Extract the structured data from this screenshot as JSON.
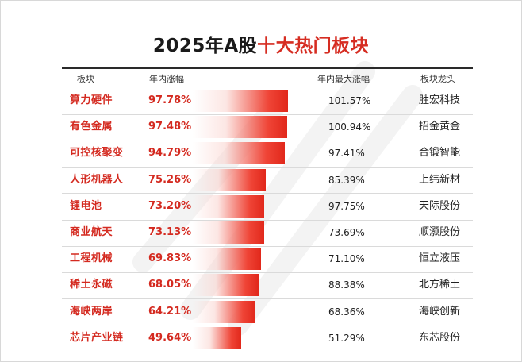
{
  "title_part1": "2025年A股",
  "title_part2": "十大热门板块",
  "headers": {
    "sector": "板块",
    "gain": "年内涨幅",
    "max_gain": "年内最大涨幅",
    "leader": "板块龙头"
  },
  "rows": [
    {
      "sector": "算力硬件",
      "gain": "97.78%",
      "max_gain": "101.57%",
      "leader": "胜宏科技"
    },
    {
      "sector": "有色金属",
      "gain": "97.48%",
      "max_gain": "100.94%",
      "leader": "招金黄金"
    },
    {
      "sector": "可控核聚变",
      "gain": "94.79%",
      "max_gain": "97.41%",
      "leader": "合锻智能"
    },
    {
      "sector": "人形机器人",
      "gain": "75.26%",
      "max_gain": "85.39%",
      "leader": "上纬新材"
    },
    {
      "sector": "锂电池",
      "gain": "73.20%",
      "max_gain": "97.75%",
      "leader": "天际股份"
    },
    {
      "sector": "商业航天",
      "gain": "73.13%",
      "max_gain": "73.69%",
      "leader": "顺灏股份"
    },
    {
      "sector": "工程机械",
      "gain": "69.83%",
      "max_gain": "71.10%",
      "leader": "恒立液压"
    },
    {
      "sector": "稀土永磁",
      "gain": "68.05%",
      "max_gain": "88.38%",
      "leader": "北方稀土"
    },
    {
      "sector": "海峡两岸",
      "gain": "64.21%",
      "max_gain": "68.36%",
      "leader": "海峡创新"
    },
    {
      "sector": "芯片产业链",
      "gain": "49.64%",
      "max_gain": "51.29%",
      "leader": "东芯股份"
    }
  ],
  "chart_data": {
    "type": "bar",
    "title": "2025年A股十大热门板块",
    "categories": [
      "算力硬件",
      "有色金属",
      "可控核聚变",
      "人形机器人",
      "锂电池",
      "商业航天",
      "工程机械",
      "稀土永磁",
      "海峡两岸",
      "芯片产业链"
    ],
    "series": [
      {
        "name": "年内涨幅",
        "values": [
          97.78,
          97.48,
          94.79,
          75.26,
          73.2,
          73.13,
          69.83,
          68.05,
          64.21,
          49.64
        ]
      },
      {
        "name": "年内最大涨幅",
        "values": [
          101.57,
          100.94,
          97.41,
          85.39,
          97.75,
          73.69,
          71.1,
          88.38,
          68.36,
          51.29
        ]
      }
    ],
    "leaders": [
      "胜宏科技",
      "招金黄金",
      "合锻智能",
      "上纬新材",
      "天际股份",
      "顺灏股份",
      "恒立液压",
      "北方稀土",
      "海峡创新",
      "东芯股份"
    ],
    "unit": "%",
    "colors": {
      "bar": "#e1281b",
      "text_accent": "#d42a20"
    }
  }
}
